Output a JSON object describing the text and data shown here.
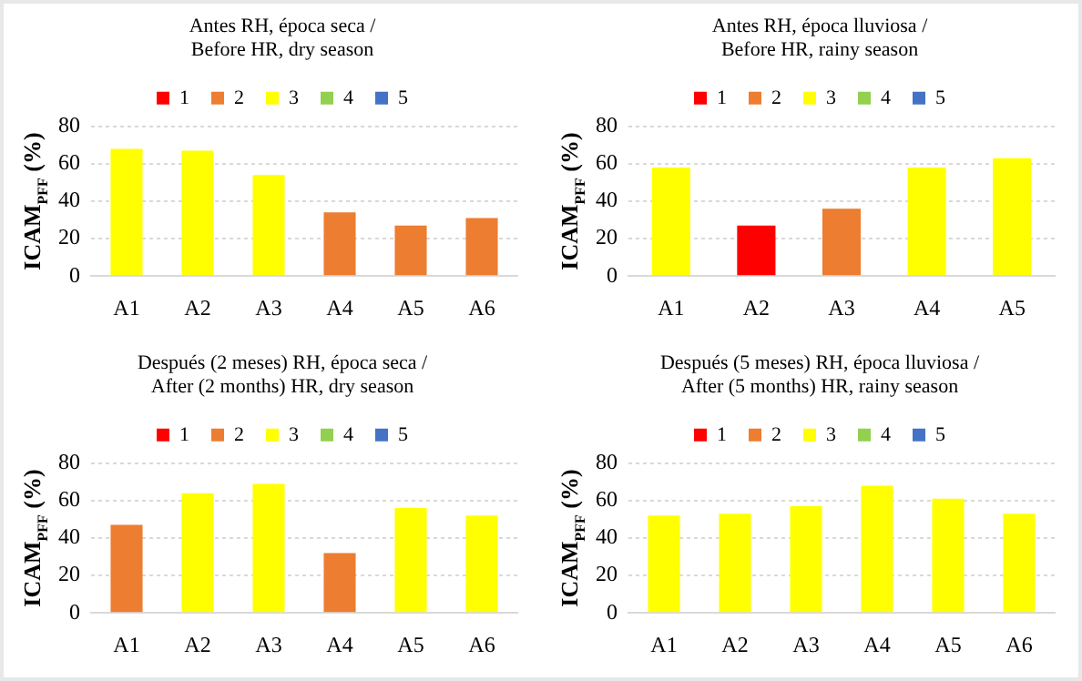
{
  "chart_data": [
    {
      "type": "bar",
      "title": "Antes RH, época seca /\nBefore HR, dry season",
      "ylabel": "ICAM$_{PFF}$ (%)",
      "categories": [
        "A1",
        "A2",
        "A3",
        "A4",
        "A5",
        "A6"
      ],
      "stacked": true,
      "ylim": [
        0,
        80
      ],
      "yticks": [
        0,
        20,
        40,
        60,
        80
      ],
      "grid": "y",
      "legend": "top",
      "series": [
        {
          "name": "1",
          "color": "#ff0000",
          "values": [
            null,
            null,
            null,
            null,
            null,
            null
          ]
        },
        {
          "name": "2",
          "color": "#ed7d31",
          "values": [
            null,
            null,
            null,
            34,
            27,
            31
          ]
        },
        {
          "name": "3",
          "color": "#ffff00",
          "values": [
            68,
            67,
            54,
            null,
            null,
            null
          ]
        },
        {
          "name": "4",
          "color": "#92d050",
          "values": [
            null,
            null,
            null,
            null,
            null,
            null
          ]
        },
        {
          "name": "5",
          "color": "#4472c4",
          "values": [
            null,
            null,
            null,
            null,
            null,
            null
          ]
        }
      ]
    },
    {
      "type": "bar",
      "title": "Antes RH, época lluviosa /\nBefore HR, rainy season",
      "ylabel": "ICAM$_{PFF}$ (%)",
      "categories": [
        "A1",
        "A2",
        "A3",
        "A4",
        "A5"
      ],
      "stacked": true,
      "ylim": [
        0,
        80
      ],
      "yticks": [
        0,
        20,
        40,
        60,
        80
      ],
      "grid": "y",
      "legend": "top",
      "series": [
        {
          "name": "1",
          "color": "#ff0000",
          "values": [
            null,
            27,
            null,
            null,
            null
          ]
        },
        {
          "name": "2",
          "color": "#ed7d31",
          "values": [
            null,
            null,
            36,
            null,
            null
          ]
        },
        {
          "name": "3",
          "color": "#ffff00",
          "values": [
            58,
            null,
            null,
            58,
            63
          ]
        },
        {
          "name": "4",
          "color": "#92d050",
          "values": [
            null,
            null,
            null,
            null,
            null
          ]
        },
        {
          "name": "5",
          "color": "#4472c4",
          "values": [
            null,
            null,
            null,
            null,
            null
          ]
        }
      ]
    },
    {
      "type": "bar",
      "title": "Después (2 meses) RH, época seca /\nAfter (2 months) HR, dry season",
      "ylabel": "ICAM$_{PFF}$ (%)",
      "categories": [
        "A1",
        "A2",
        "A3",
        "A4",
        "A5",
        "A6"
      ],
      "stacked": true,
      "ylim": [
        0,
        80
      ],
      "yticks": [
        0,
        20,
        40,
        60,
        80
      ],
      "grid": "y",
      "legend": "top",
      "series": [
        {
          "name": "1",
          "color": "#ff0000",
          "values": [
            null,
            null,
            null,
            null,
            null,
            null
          ]
        },
        {
          "name": "2",
          "color": "#ed7d31",
          "values": [
            47,
            null,
            null,
            32,
            null,
            null
          ]
        },
        {
          "name": "3",
          "color": "#ffff00",
          "values": [
            null,
            64,
            69,
            null,
            56,
            52
          ]
        },
        {
          "name": "4",
          "color": "#92d050",
          "values": [
            null,
            null,
            null,
            null,
            null,
            null
          ]
        },
        {
          "name": "5",
          "color": "#4472c4",
          "values": [
            null,
            null,
            null,
            null,
            null,
            null
          ]
        }
      ]
    },
    {
      "type": "bar",
      "title": "Después (5 meses) RH, época lluviosa /\nAfter (5 months) HR, rainy season",
      "ylabel": "ICAM$_{PFF}$ (%)",
      "categories": [
        "A1",
        "A2",
        "A3",
        "A4",
        "A5",
        "A6"
      ],
      "stacked": true,
      "ylim": [
        0,
        80
      ],
      "yticks": [
        0,
        20,
        40,
        60,
        80
      ],
      "grid": "y",
      "legend": "top",
      "series": [
        {
          "name": "1",
          "color": "#ff0000",
          "values": [
            null,
            null,
            null,
            null,
            null,
            null
          ]
        },
        {
          "name": "2",
          "color": "#ed7d31",
          "values": [
            null,
            null,
            null,
            null,
            null,
            null
          ]
        },
        {
          "name": "3",
          "color": "#ffff00",
          "values": [
            52,
            53,
            57,
            68,
            61,
            53
          ]
        },
        {
          "name": "4",
          "color": "#92d050",
          "values": [
            null,
            null,
            null,
            null,
            null,
            null
          ]
        },
        {
          "name": "5",
          "color": "#4472c4",
          "values": [
            null,
            null,
            null,
            null,
            null,
            null
          ]
        }
      ]
    }
  ]
}
